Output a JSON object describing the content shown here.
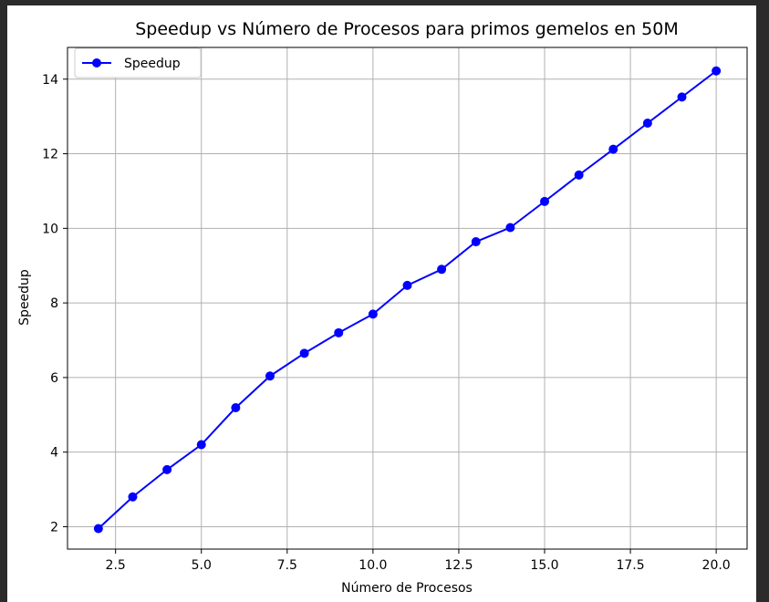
{
  "colors": {
    "figure_background": "#ffffff",
    "outer_background": "#2b2b2b",
    "series_color": "#0000ff",
    "grid_color": "#b0b0b0",
    "axes_color": "#000000"
  },
  "chart_data": {
    "type": "line",
    "title": "Speedup vs Número de Procesos para primos gemelos en 50M",
    "xlabel": "Número de Procesos",
    "ylabel": "Speedup",
    "xlim": [
      1.1,
      20.9
    ],
    "ylim": [
      1.4,
      14.85
    ],
    "xticks": [
      2.5,
      5.0,
      7.5,
      10.0,
      12.5,
      15.0,
      17.5,
      20.0
    ],
    "xtick_labels": [
      "2.5",
      "5.0",
      "7.5",
      "10.0",
      "12.5",
      "15.0",
      "17.5",
      "20.0"
    ],
    "yticks": [
      2,
      4,
      6,
      8,
      10,
      12,
      14
    ],
    "ytick_labels": [
      "2",
      "4",
      "6",
      "8",
      "10",
      "12",
      "14"
    ],
    "grid": true,
    "legend_position": "upper-left",
    "series": [
      {
        "name": "Speedup",
        "marker": "circle",
        "color": "#0000ff",
        "x": [
          2,
          3,
          4,
          5,
          6,
          7,
          8,
          9,
          10,
          11,
          12,
          13,
          14,
          15,
          16,
          17,
          18,
          19,
          20
        ],
        "y": [
          1.95,
          2.8,
          3.53,
          4.2,
          5.19,
          6.04,
          6.65,
          7.2,
          7.7,
          8.47,
          8.9,
          9.64,
          10.02,
          10.72,
          11.43,
          12.12,
          12.82,
          13.52,
          14.22
        ]
      }
    ]
  }
}
